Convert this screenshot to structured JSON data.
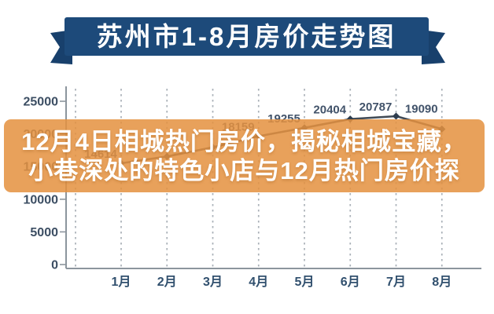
{
  "banner": {
    "title": "苏州市1-8月房价走势图"
  },
  "overlay": {
    "line1": "12月4日相城热门房价，揭秘相城宝藏，",
    "line2": "小巷深处的特色小店与12月热门房价探"
  },
  "colors": {
    "ribbon_blue": "#1D4A7A",
    "ribbon_tail_blue": "#18406C",
    "overlay_orange": "rgba(228,146,64,0.86)",
    "line_color": "#414B56",
    "marker_color": "#2E3D4E",
    "grid_color": "#A9B0B7",
    "axis_color": "#8C959D",
    "tick_text": "#3C4E63",
    "background": "#FFFFFF"
  },
  "chart_data": {
    "type": "line",
    "title": "苏州市1-8月房价走势图",
    "categories": [
      "1月",
      "2月",
      "3月",
      "4月",
      "5月",
      "6月",
      "7月",
      "8月"
    ],
    "values": [
      14614,
      15500,
      16700,
      18159,
      19255,
      20404,
      20787,
      19090
    ],
    "point_labels": [
      "14614",
      null,
      null,
      "18159",
      "19255",
      "20404",
      "20787",
      "19090"
    ],
    "labeled_values_note": "2月 and 3月 point labels hidden behind headline band; their values estimated from line position",
    "xlabel": "",
    "ylabel": "",
    "ylim": [
      0,
      25000
    ],
    "yticks": [
      0,
      5000,
      10000,
      15000,
      20000,
      25000
    ],
    "grid": "vertical-dashed",
    "legend": "none"
  }
}
